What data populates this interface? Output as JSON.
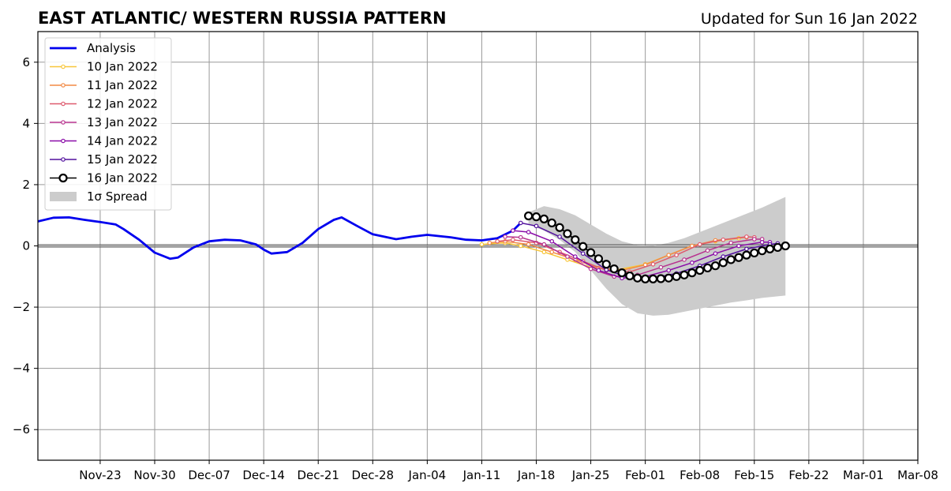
{
  "chart_data": {
    "type": "line",
    "title": "EAST ATLANTIC/ WESTERN RUSSIA PATTERN",
    "subtitle": "Updated for Sun 16 Jan 2022",
    "xlabel": "",
    "ylabel": "",
    "xlim": [
      "2021-11-15",
      "2022-03-08"
    ],
    "ylim": [
      -7,
      7
    ],
    "x_tick_labels": [
      "Nov-23",
      "Nov-30",
      "Dec-07",
      "Dec-14",
      "Dec-21",
      "Dec-28",
      "Jan-04",
      "Jan-11",
      "Jan-18",
      "Jan-25",
      "Feb-01",
      "Feb-08",
      "Feb-15",
      "Feb-22",
      "Mar-01",
      "Mar-08"
    ],
    "x_tick_dates": [
      "2021-11-23",
      "2021-11-30",
      "2021-12-07",
      "2021-12-14",
      "2021-12-21",
      "2021-12-28",
      "2022-01-04",
      "2022-01-11",
      "2022-01-18",
      "2022-01-25",
      "2022-02-01",
      "2022-02-08",
      "2022-02-15",
      "2022-02-22",
      "2022-03-01",
      "2022-03-08"
    ],
    "y_ticks": [
      6,
      4,
      2,
      0,
      -2,
      -4,
      -6
    ],
    "y_tick_labels": [
      "6",
      "4",
      "2",
      "0",
      "−2",
      "−4",
      "−6"
    ],
    "grid": true,
    "legend_position": "top-left",
    "series": [
      {
        "name": "Analysis",
        "color": "#0000ee",
        "style": "thick-line",
        "x": [
          "2021-11-15",
          "2021-11-17",
          "2021-11-19",
          "2021-11-21",
          "2021-11-23",
          "2021-11-25",
          "2021-11-26",
          "2021-11-28",
          "2021-11-30",
          "2021-12-02",
          "2021-12-03",
          "2021-12-05",
          "2021-12-07",
          "2021-12-09",
          "2021-12-11",
          "2021-12-13",
          "2021-12-14",
          "2021-12-15",
          "2021-12-17",
          "2021-12-19",
          "2021-12-21",
          "2021-12-23",
          "2021-12-24",
          "2021-12-26",
          "2021-12-28",
          "2021-12-31",
          "2022-01-02",
          "2022-01-04",
          "2022-01-07",
          "2022-01-09",
          "2022-01-11",
          "2022-01-13",
          "2022-01-15",
          "2022-01-16"
        ],
        "y": [
          0.8,
          0.92,
          0.93,
          0.85,
          0.78,
          0.7,
          0.55,
          0.2,
          -0.22,
          -0.42,
          -0.38,
          -0.05,
          0.15,
          0.2,
          0.18,
          0.05,
          -0.12,
          -0.25,
          -0.2,
          0.1,
          0.55,
          0.85,
          0.93,
          0.65,
          0.38,
          0.22,
          0.3,
          0.36,
          0.28,
          0.2,
          0.18,
          0.25,
          0.5,
          0.75
        ]
      },
      {
        "name": "10 Jan 2022",
        "color": "#f8c63a",
        "style": "line-small-markers",
        "x": [
          "2022-01-11",
          "2022-01-14",
          "2022-01-16",
          "2022-01-19",
          "2022-01-22",
          "2022-01-25",
          "2022-01-28",
          "2022-02-01",
          "2022-02-04",
          "2022-02-07",
          "2022-02-10",
          "2022-02-13"
        ],
        "y": [
          0.05,
          0.1,
          0.0,
          -0.2,
          -0.45,
          -0.7,
          -0.8,
          -0.6,
          -0.3,
          0.0,
          0.15,
          0.25
        ]
      },
      {
        "name": "11 Jan 2022",
        "color": "#f28a45",
        "style": "line-small-markers",
        "x": [
          "2022-01-12",
          "2022-01-14",
          "2022-01-17",
          "2022-01-20",
          "2022-01-23",
          "2022-01-26",
          "2022-01-29",
          "2022-02-01",
          "2022-02-04",
          "2022-02-07",
          "2022-02-10",
          "2022-02-14"
        ],
        "y": [
          0.1,
          0.15,
          0.05,
          -0.2,
          -0.45,
          -0.72,
          -0.8,
          -0.62,
          -0.3,
          0.0,
          0.18,
          0.28
        ]
      },
      {
        "name": "12 Jan 2022",
        "color": "#de5a6e",
        "style": "line-small-markers",
        "x": [
          "2022-01-13",
          "2022-01-15",
          "2022-01-18",
          "2022-01-21",
          "2022-01-24",
          "2022-01-27",
          "2022-01-30",
          "2022-02-02",
          "2022-02-05",
          "2022-02-08",
          "2022-02-11",
          "2022-02-14",
          "2022-02-15"
        ],
        "y": [
          0.15,
          0.2,
          0.1,
          -0.2,
          -0.5,
          -0.8,
          -0.85,
          -0.6,
          -0.3,
          0.05,
          0.2,
          0.3,
          0.28
        ]
      },
      {
        "name": "13 Jan 2022",
        "color": "#b8338f",
        "style": "line-small-markers",
        "x": [
          "2022-01-14",
          "2022-01-16",
          "2022-01-19",
          "2022-01-22",
          "2022-01-25",
          "2022-01-28",
          "2022-01-31",
          "2022-02-03",
          "2022-02-06",
          "2022-02-09",
          "2022-02-12",
          "2022-02-15",
          "2022-02-16"
        ],
        "y": [
          0.3,
          0.28,
          0.05,
          -0.35,
          -0.75,
          -1.0,
          -0.95,
          -0.7,
          -0.45,
          -0.15,
          0.1,
          0.22,
          0.22
        ]
      },
      {
        "name": "14 Jan 2022",
        "color": "#8a0ca8",
        "style": "line-small-markers",
        "x": [
          "2022-01-15",
          "2022-01-17",
          "2022-01-20",
          "2022-01-23",
          "2022-01-26",
          "2022-01-29",
          "2022-02-01",
          "2022-02-04",
          "2022-02-07",
          "2022-02-10",
          "2022-02-13",
          "2022-02-16",
          "2022-02-17"
        ],
        "y": [
          0.5,
          0.45,
          0.15,
          -0.35,
          -0.8,
          -1.05,
          -1.0,
          -0.8,
          -0.55,
          -0.25,
          0.0,
          0.12,
          0.12
        ]
      },
      {
        "name": "15 Jan 2022",
        "color": "#52119e",
        "style": "line-small-markers",
        "x": [
          "2022-01-16",
          "2022-01-18",
          "2022-01-21",
          "2022-01-24",
          "2022-01-27",
          "2022-01-30",
          "2022-02-02",
          "2022-02-05",
          "2022-02-08",
          "2022-02-11",
          "2022-02-14",
          "2022-02-17",
          "2022-02-18"
        ],
        "y": [
          0.75,
          0.65,
          0.3,
          -0.25,
          -0.78,
          -1.05,
          -1.05,
          -0.9,
          -0.65,
          -0.35,
          -0.1,
          0.05,
          0.08
        ]
      },
      {
        "name": "16 Jan 2022",
        "color": "#000000",
        "style": "line-large-markers",
        "x": [
          "2022-01-17",
          "2022-01-18",
          "2022-01-19",
          "2022-01-20",
          "2022-01-21",
          "2022-01-22",
          "2022-01-23",
          "2022-01-24",
          "2022-01-25",
          "2022-01-26",
          "2022-01-27",
          "2022-01-28",
          "2022-01-29",
          "2022-01-30",
          "2022-01-31",
          "2022-02-01",
          "2022-02-02",
          "2022-02-03",
          "2022-02-04",
          "2022-02-05",
          "2022-02-06",
          "2022-02-07",
          "2022-02-08",
          "2022-02-09",
          "2022-02-10",
          "2022-02-11",
          "2022-02-12",
          "2022-02-13",
          "2022-02-14",
          "2022-02-15",
          "2022-02-16",
          "2022-02-17",
          "2022-02-18",
          "2022-02-19"
        ],
        "y": [
          0.98,
          0.95,
          0.88,
          0.75,
          0.6,
          0.4,
          0.2,
          -0.02,
          -0.22,
          -0.42,
          -0.6,
          -0.75,
          -0.88,
          -0.98,
          -1.05,
          -1.08,
          -1.08,
          -1.07,
          -1.05,
          -1.0,
          -0.95,
          -0.88,
          -0.8,
          -0.72,
          -0.65,
          -0.55,
          -0.45,
          -0.38,
          -0.3,
          -0.23,
          -0.16,
          -0.1,
          -0.05,
          0.0
        ]
      }
    ],
    "spread": {
      "name": "1σ Spread",
      "color": "#cccccc",
      "x": [
        "2022-01-17",
        "2022-01-19",
        "2022-01-21",
        "2022-01-23",
        "2022-01-25",
        "2022-01-27",
        "2022-01-29",
        "2022-01-31",
        "2022-02-02",
        "2022-02-04",
        "2022-02-06",
        "2022-02-08",
        "2022-02-10",
        "2022-02-12",
        "2022-02-14",
        "2022-02-16",
        "2022-02-19"
      ],
      "upper": [
        1.1,
        1.3,
        1.2,
        1.0,
        0.7,
        0.4,
        0.15,
        0.02,
        0.0,
        0.1,
        0.25,
        0.45,
        0.65,
        0.85,
        1.05,
        1.25,
        1.6
      ],
      "lower": [
        0.7,
        0.5,
        0.2,
        -0.2,
        -0.8,
        -1.4,
        -1.9,
        -2.2,
        -2.28,
        -2.25,
        -2.15,
        -2.05,
        -1.95,
        -1.85,
        -1.78,
        -1.7,
        -1.62
      ]
    }
  }
}
